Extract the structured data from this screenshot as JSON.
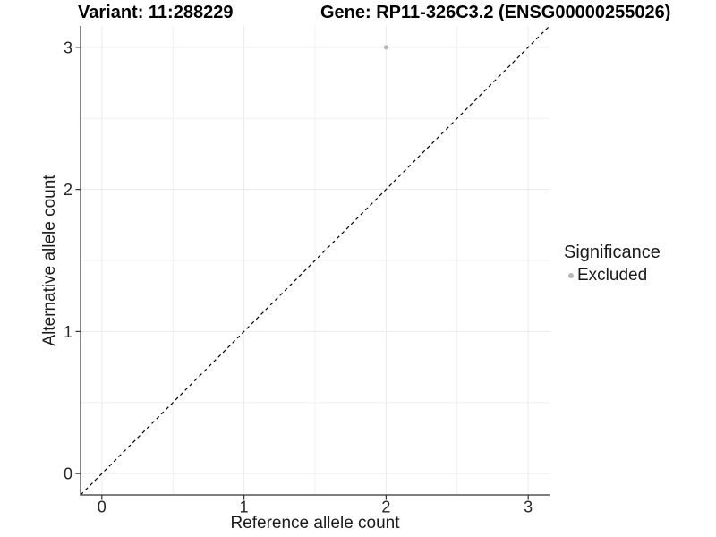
{
  "titles": {
    "variant": "Variant: 11:288229",
    "gene": "Gene: RP11-326C3.2 (ENSG00000255026)"
  },
  "chart_data": {
    "type": "scatter",
    "xlabel": "Reference allele count",
    "ylabel": "Alternative allele count",
    "x_ticks": [
      0,
      1,
      2,
      3
    ],
    "y_ticks": [
      0,
      1,
      2,
      3
    ],
    "x_minor_ticks": [
      0.5,
      1.5,
      2.5
    ],
    "y_minor_ticks": [
      0.5,
      1.5,
      2.5
    ],
    "xlim": [
      -0.15,
      3.15
    ],
    "ylim": [
      -0.15,
      3.15
    ],
    "grid": true,
    "points": [
      {
        "x": 2,
        "y": 3,
        "series": "Excluded"
      }
    ],
    "identity_line": {
      "style": "dashed",
      "from": [
        -0.15,
        -0.15
      ],
      "to": [
        3.15,
        3.15
      ],
      "color": "#000000"
    },
    "legend": {
      "title": "Significance",
      "position": "right",
      "items": [
        {
          "label": "Excluded",
          "color": "#b8b8b8"
        }
      ]
    },
    "colors": {
      "background": "#ffffff",
      "point": "#b8b8b8",
      "grid_major": "#ebebeb",
      "grid_minor": "#f0f0f0",
      "axis": "#333333",
      "tick_label": "#262626"
    }
  }
}
